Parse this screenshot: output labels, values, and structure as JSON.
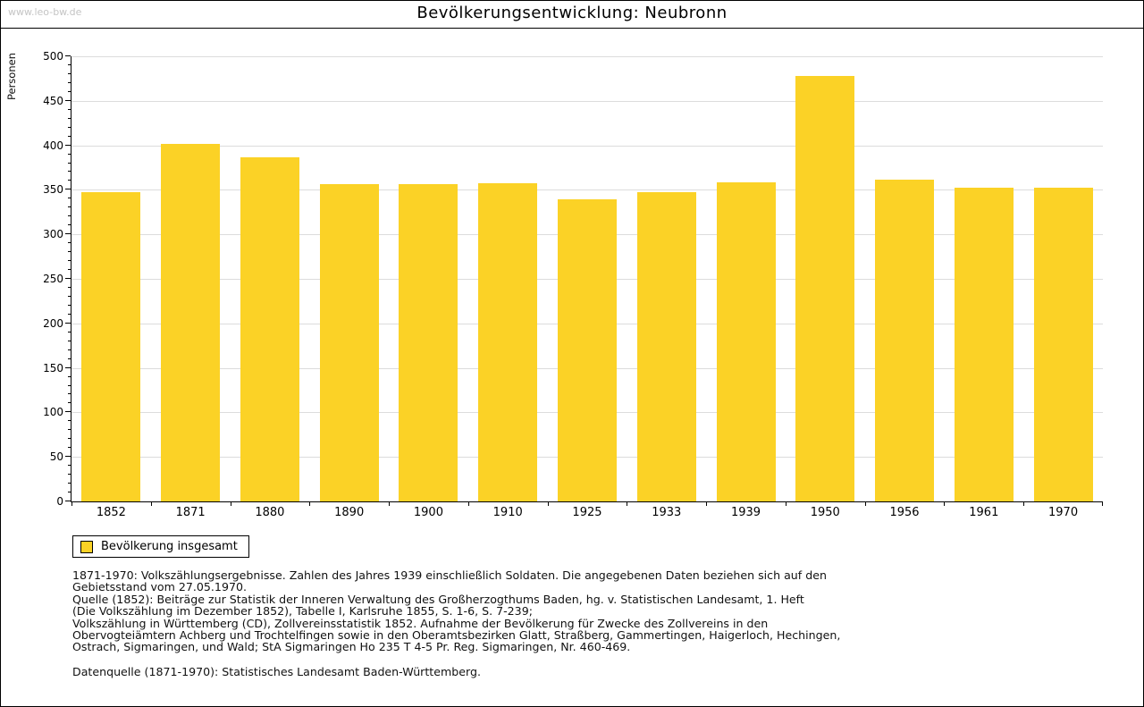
{
  "page": {
    "watermark": "www.leo-bw.de",
    "title": "Bevölkerungsentwicklung: Neubronn"
  },
  "chart_data": {
    "type": "bar",
    "title": "Bevölkerungsentwicklung: Neubronn",
    "xlabel": "",
    "ylabel": "Personen",
    "categories": [
      "1852",
      "1871",
      "1880",
      "1890",
      "1900",
      "1910",
      "1925",
      "1933",
      "1939",
      "1950",
      "1956",
      "1961",
      "1970"
    ],
    "values": [
      347,
      402,
      387,
      356,
      356,
      357,
      339,
      347,
      358,
      478,
      361,
      352,
      352
    ],
    "ylim": [
      0,
      500
    ],
    "ytick_step": 50,
    "minor_tick_step": 10,
    "grid": "horizontal",
    "grid_color": "#dcdcdc",
    "bar_color": "#fbd226",
    "legend_position": "bottom-left",
    "legend": [
      {
        "label": "Bevölkerung insgesamt",
        "color": "#fbd226"
      }
    ]
  },
  "footer": {
    "lines": [
      "1871-1970: Volkszählungsergebnisse. Zahlen des Jahres 1939 einschließlich Soldaten. Die angegebenen Daten beziehen sich auf den",
      "Gebietsstand vom 27.05.1970.",
      "Quelle (1852): Beiträge zur Statistik der Inneren Verwaltung des Großherzogthums Baden, hg. v. Statistischen Landesamt, 1. Heft",
      "(Die Volkszählung im Dezember 1852), Tabelle I, Karlsruhe 1855, S. 1-6, S. 7-239;",
      "Volkszählung in Württemberg (CD), Zollvereinsstatistik 1852. Aufnahme der Bevölkerung für Zwecke des Zollvereins in den",
      "Obervogteiämtern Achberg und Trochtelfingen sowie in den Oberamtsbezirken Glatt, Straßberg, Gammertingen, Haigerloch, Hechingen,",
      "Ostrach, Sigmaringen, und Wald; StA Sigmaringen Ho 235 T 4-5 Pr. Reg. Sigmaringen, Nr. 460-469."
    ],
    "source": "Datenquelle (1871-1970): Statistisches Landesamt Baden-Württemberg."
  }
}
